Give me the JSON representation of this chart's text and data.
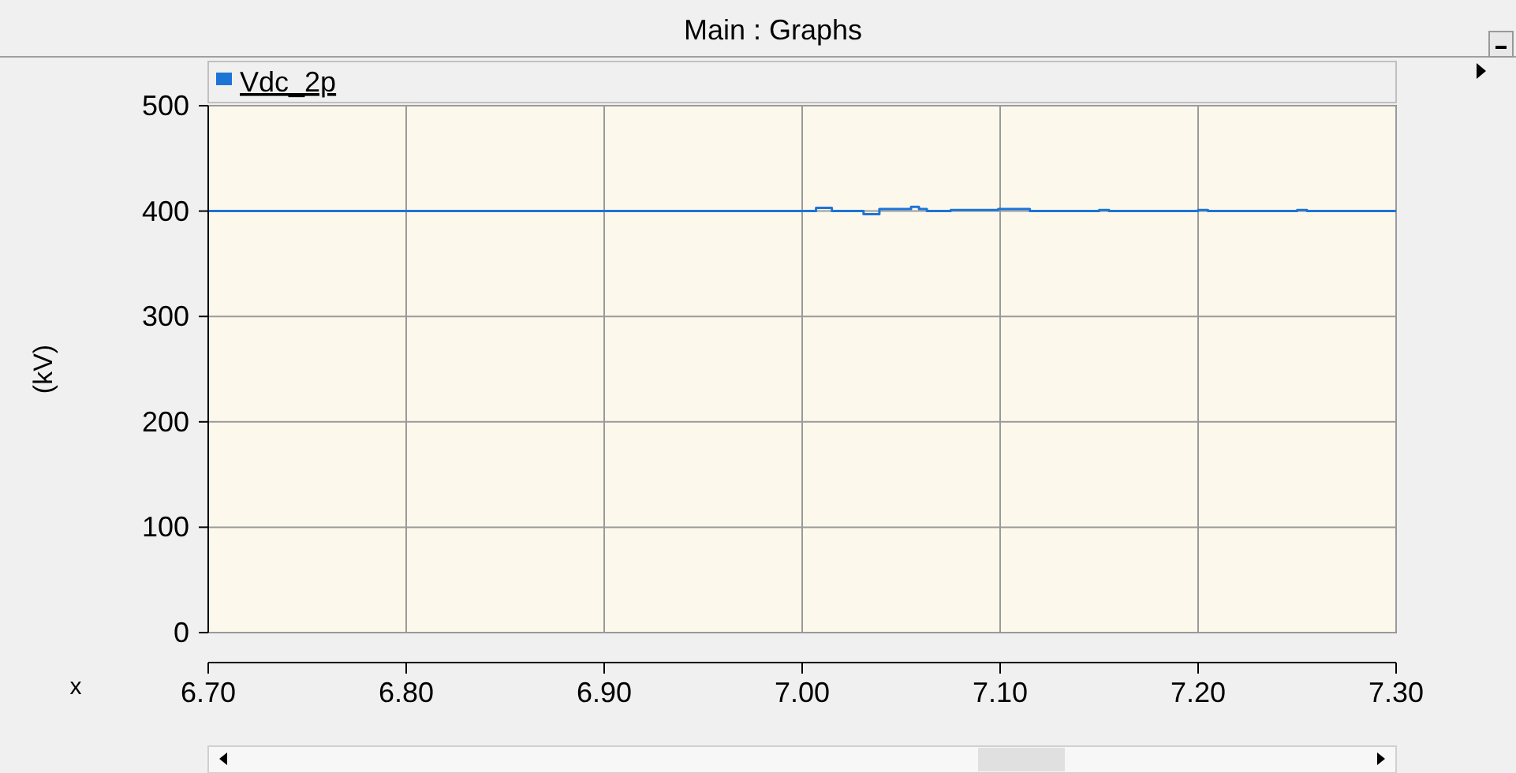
{
  "chart_data": {
    "type": "step",
    "title": "Main : Graphs",
    "xlabel": "x",
    "ylabel": "(kV)",
    "x": [
      6.7,
      7.007,
      7.015,
      7.031,
      7.039,
      7.055,
      7.059,
      7.063,
      7.075,
      7.099,
      7.115,
      7.15,
      7.155,
      7.2,
      7.205,
      7.25,
      7.255,
      7.3
    ],
    "series": [
      {
        "name": "Vdc_2p",
        "color": "#1c75d6",
        "values": [
          400,
          403,
          400,
          397,
          402,
          404,
          402,
          400,
          401,
          402,
          400,
          401,
          400,
          401,
          400,
          401,
          400,
          400
        ]
      }
    ],
    "xlim": [
      6.7,
      7.3
    ],
    "xticks": [
      {
        "value": 6.7,
        "label": "6.70"
      },
      {
        "value": 6.8,
        "label": "6.80"
      },
      {
        "value": 6.9,
        "label": "6.90"
      },
      {
        "value": 7,
        "label": "7.00"
      },
      {
        "value": 7.1,
        "label": "7.10"
      },
      {
        "value": 7.2,
        "label": "7.20"
      },
      {
        "value": 7.3,
        "label": "7.30"
      }
    ],
    "ylim": [
      0,
      500
    ],
    "yticks": [
      0,
      100,
      200,
      300,
      400,
      500
    ],
    "grid": true,
    "legend": "top left"
  }
}
